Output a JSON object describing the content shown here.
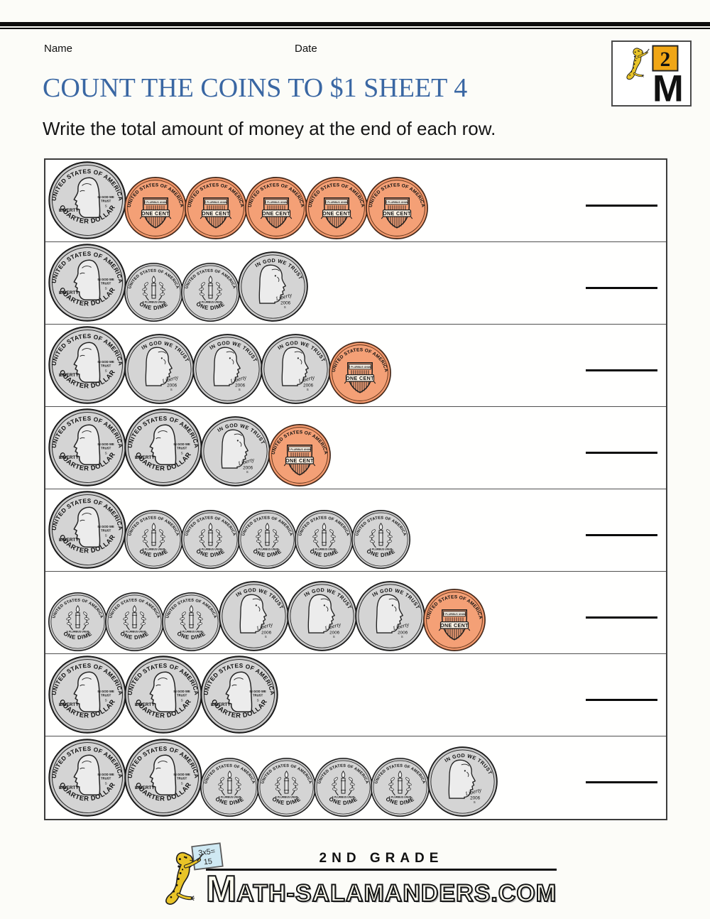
{
  "page": {
    "name_label": "Name",
    "date_label": "Date",
    "title": "COUNT THE COINS TO $1 SHEET 4",
    "instruction": "Write the total amount of money at the end of each row."
  },
  "logo": {
    "grade_number": "2",
    "m_letter": "M"
  },
  "coins": {
    "quarter": {
      "top_text": "UNITED STATES OF AMERICA",
      "bottom_text": "QUARTER DOLLAR",
      "liberty": "LIBERTY",
      "motto_line1": "IN GOD WE",
      "motto_line2": "TRUST",
      "mint": "S"
    },
    "nickel": {
      "motto": "IN GOD WE TRUST",
      "liberty": "Liberty",
      "year": "2006",
      "mint": "S"
    },
    "dime": {
      "top_text": "UNITED STATES OF AMERICA",
      "motto": "E PLURIBUS UNUM",
      "bottom_text": "ONE DIME"
    },
    "penny": {
      "top_text": "UNITED STATES OF AMERICA",
      "banner": "E PLURIBUS UNUM",
      "denomination": "ONE CENT"
    }
  },
  "worksheet": {
    "rows": [
      {
        "coins": [
          "quarter",
          "penny",
          "penny",
          "penny",
          "penny",
          "penny"
        ]
      },
      {
        "coins": [
          "quarter",
          "dime",
          "dime",
          "nickel"
        ]
      },
      {
        "coins": [
          "quarter",
          "nickel",
          "nickel",
          "nickel",
          "penny"
        ]
      },
      {
        "coins": [
          "quarter",
          "quarter",
          "nickel",
          "penny"
        ]
      },
      {
        "coins": [
          "quarter",
          "dime",
          "dime",
          "dime",
          "dime",
          "dime"
        ]
      },
      {
        "coins": [
          "dime",
          "dime",
          "dime",
          "nickel",
          "nickel",
          "nickel",
          "penny"
        ]
      },
      {
        "coins": [
          "quarter",
          "quarter",
          "quarter"
        ]
      },
      {
        "coins": [
          "quarter",
          "quarter",
          "dime",
          "dime",
          "dime",
          "dime",
          "nickel"
        ]
      }
    ]
  },
  "footer": {
    "board_line1": "3x5=",
    "board_line2": "15",
    "grade_text": "2ND GRADE",
    "wordmark_first": "M",
    "wordmark_rest": "ATH-SALAMANDERS.COM"
  },
  "colors": {
    "title_blue": "#3a67a3",
    "silver": "#cbcbcb",
    "copper": "#f2986c",
    "salamander_yellow": "#e9c427",
    "logo_orange": "#f0a616",
    "board_blue": "#cfe9f3"
  }
}
